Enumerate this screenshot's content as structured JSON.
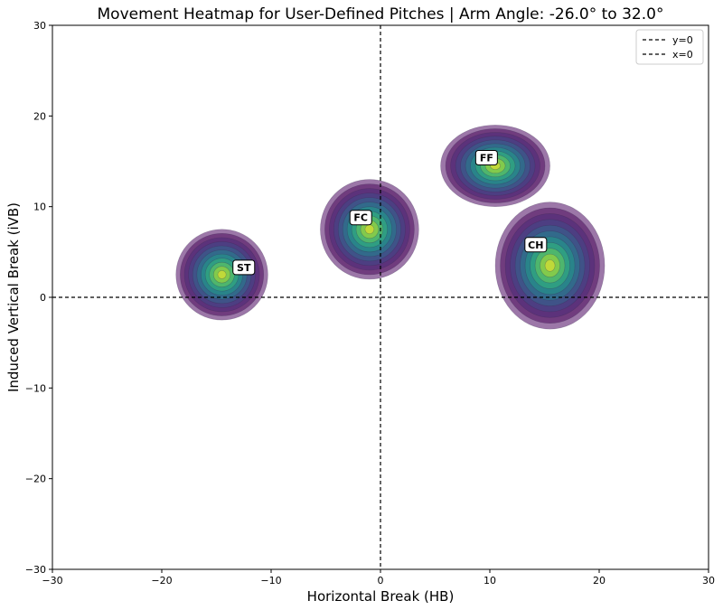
{
  "chart_data": {
    "type": "heatmap",
    "title": "Movement Heatmap for User-Defined Pitches | Arm Angle: -26.0° to 32.0°",
    "xlabel": "Horizontal Break (HB)",
    "ylabel": "Induced Vertical Break (iVB)",
    "xlim": [
      -30,
      30
    ],
    "ylim": [
      -30,
      30
    ],
    "x_ticks": [
      -30,
      -20,
      -10,
      0,
      10,
      20,
      30
    ],
    "y_ticks": [
      -30,
      -20,
      -10,
      0,
      10,
      20,
      30
    ],
    "x_tick_labels": [
      "−30",
      "−20",
      "−10",
      "0",
      "10",
      "20",
      "30"
    ],
    "y_tick_labels": [
      "−30",
      "−20",
      "−10",
      "0",
      "10",
      "20",
      "30"
    ],
    "reference_lines": [
      {
        "label": "y=0",
        "orientation": "horizontal",
        "value": 0
      },
      {
        "label": "x=0",
        "orientation": "vertical",
        "value": 0
      }
    ],
    "legend": {
      "position": "top-right",
      "entries": [
        "y=0",
        "x=0"
      ]
    },
    "colormap": "viridis",
    "series": [
      {
        "name": "ST",
        "center": [
          -14.5,
          2.5
        ],
        "spread": [
          4.2,
          5.0
        ],
        "label_at": [
          -12.5,
          3.3
        ]
      },
      {
        "name": "FC",
        "center": [
          -1.0,
          7.5
        ],
        "spread": [
          4.5,
          5.5
        ],
        "label_at": [
          -1.8,
          8.8
        ]
      },
      {
        "name": "FF",
        "center": [
          10.5,
          14.5
        ],
        "spread": [
          5.0,
          4.5
        ],
        "label_at": [
          9.7,
          15.4
        ]
      },
      {
        "name": "CH",
        "center": [
          15.5,
          3.5
        ],
        "spread": [
          5.0,
          7.0
        ],
        "label_at": [
          14.2,
          5.8
        ]
      }
    ]
  },
  "colors": {
    "outer_fill": "#7b4a8b",
    "viridis": [
      "#440154",
      "#482878",
      "#3e4989",
      "#31688e",
      "#26828e",
      "#1f9e89",
      "#35b779",
      "#6ece58",
      "#b5de2b",
      "#fde725"
    ]
  }
}
